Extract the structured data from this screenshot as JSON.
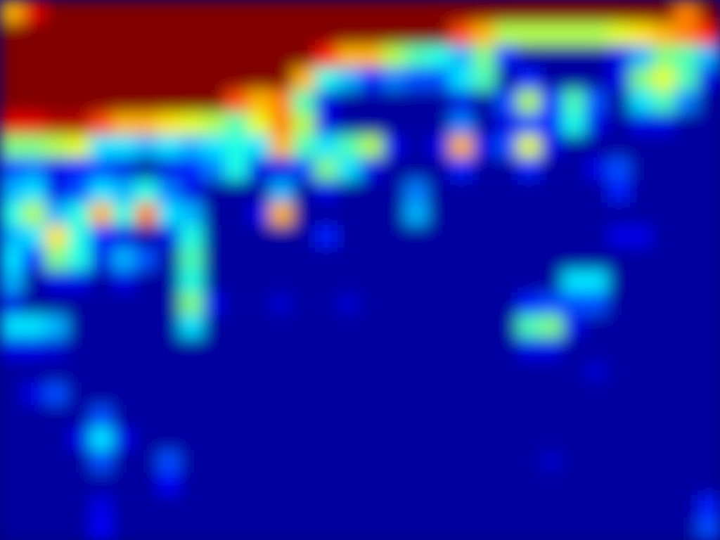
{
  "chart_data": {
    "type": "heatmap",
    "tick_labels": false,
    "zlim": [
      0,
      1
    ],
    "cells": [
      [
        0.7,
        0.9,
        1,
        1,
        1,
        1,
        1,
        1,
        1,
        1,
        1,
        1,
        1,
        1,
        1,
        1,
        1,
        1,
        1,
        1,
        1,
        1,
        1,
        1,
        1,
        1,
        1,
        1,
        1,
        1,
        0.75,
        1
      ],
      [
        1,
        1,
        1,
        1,
        1,
        1,
        1,
        1,
        1,
        1,
        1,
        1,
        1,
        1,
        1,
        1,
        1,
        1,
        1,
        1,
        0.8,
        0.7,
        0.55,
        0.55,
        0.55,
        0.55,
        0.55,
        0.6,
        0.65,
        0.7,
        0.75,
        0.85
      ],
      [
        1,
        1,
        1,
        1,
        1,
        1,
        1,
        1,
        1,
        1,
        1,
        1,
        1,
        1,
        0.85,
        0.7,
        0.7,
        0.55,
        0.45,
        0.4,
        0.3,
        0.5,
        0.15,
        0.03,
        0.03,
        0.03,
        0.03,
        0.1,
        0.3,
        0.5,
        0.45,
        0.3
      ],
      [
        1,
        1,
        1,
        1,
        1,
        1,
        1,
        1,
        1,
        1,
        1,
        1,
        1,
        0.7,
        0.4,
        0.3,
        0.15,
        0.25,
        0.2,
        0.2,
        0.35,
        0.45,
        0.03,
        0.15,
        0.03,
        0.03,
        0.03,
        0.1,
        0.5,
        0.6,
        0.45,
        0.1
      ],
      [
        1,
        1,
        1,
        1,
        1,
        1,
        1,
        1,
        1,
        1,
        0.8,
        0.7,
        0.75,
        0.45,
        0.1,
        0.03,
        0.03,
        0.03,
        0.03,
        0.03,
        0.1,
        0.03,
        0.2,
        0.55,
        0.15,
        0.45,
        0.2,
        0.03,
        0.35,
        0.45,
        0.25,
        0.03
      ],
      [
        0.9,
        0.9,
        0.95,
        0.95,
        0.8,
        0.7,
        0.7,
        0.65,
        0.6,
        0.55,
        0.45,
        0.6,
        0.75,
        0.55,
        0.1,
        0.03,
        0.03,
        0.03,
        0.03,
        0.03,
        0.25,
        0.03,
        0.1,
        0.2,
        0.15,
        0.4,
        0.1,
        0.03,
        0.1,
        0.1,
        0.03,
        0.03
      ],
      [
        0.5,
        0.5,
        0.55,
        0.6,
        0.35,
        0.35,
        0.3,
        0.35,
        0.3,
        0.35,
        0.4,
        0.35,
        0.7,
        0.45,
        0.35,
        0.45,
        0.55,
        0.1,
        0.03,
        0.1,
        0.7,
        0.1,
        0.2,
        0.6,
        0.1,
        0.03,
        0.03,
        0.03,
        0.03,
        0.03,
        0.03,
        0.03
      ],
      [
        0.2,
        0.25,
        0.1,
        0.15,
        0.2,
        0.1,
        0.03,
        0.1,
        0.15,
        0.25,
        0.4,
        0.1,
        0.1,
        0.2,
        0.5,
        0.35,
        0.1,
        0.03,
        0.03,
        0.03,
        0.15,
        0.03,
        0.03,
        0.15,
        0.03,
        0.03,
        0.1,
        0.2,
        0.03,
        0.03,
        0.03,
        0.03
      ],
      [
        0.3,
        0.35,
        0.1,
        0.2,
        0.35,
        0.3,
        0.4,
        0.25,
        0.1,
        0.03,
        0.03,
        0.03,
        0.3,
        0.03,
        0.1,
        0.03,
        0.03,
        0.03,
        0.25,
        0.03,
        0.03,
        0.03,
        0.03,
        0.03,
        0.03,
        0.03,
        0.03,
        0.15,
        0.03,
        0.03,
        0.03,
        0.03
      ],
      [
        0.4,
        0.55,
        0.3,
        0.4,
        0.7,
        0.4,
        0.75,
        0.35,
        0.3,
        0.03,
        0.03,
        0.1,
        0.7,
        0.03,
        0.03,
        0.03,
        0.03,
        0.03,
        0.3,
        0.03,
        0.03,
        0.03,
        0.03,
        0.03,
        0.03,
        0.03,
        0.03,
        0.03,
        0.03,
        0.03,
        0.03,
        0.03
      ],
      [
        0.3,
        0.35,
        0.65,
        0.4,
        0.15,
        0.1,
        0.03,
        0.1,
        0.4,
        0.03,
        0.03,
        0.03,
        0.03,
        0.03,
        0.15,
        0.03,
        0.03,
        0.03,
        0.03,
        0.03,
        0.03,
        0.03,
        0.03,
        0.03,
        0.03,
        0.03,
        0.03,
        0.1,
        0.1,
        0.03,
        0.03,
        0.03
      ],
      [
        0.35,
        0.15,
        0.5,
        0.4,
        0.1,
        0.3,
        0.2,
        0.03,
        0.45,
        0.03,
        0.03,
        0.03,
        0.03,
        0.03,
        0.03,
        0.03,
        0.03,
        0.03,
        0.03,
        0.03,
        0.03,
        0.03,
        0.03,
        0.03,
        0.03,
        0.03,
        0.03,
        0.03,
        0.03,
        0.03,
        0.03,
        0.03
      ],
      [
        0.3,
        0.03,
        0.1,
        0.1,
        0.03,
        0.1,
        0.03,
        0.03,
        0.4,
        0.03,
        0.03,
        0.03,
        0.03,
        0.03,
        0.03,
        0.03,
        0.03,
        0.03,
        0.03,
        0.03,
        0.03,
        0.03,
        0.03,
        0.03,
        0.03,
        0.35,
        0.35,
        0.03,
        0.03,
        0.03,
        0.03,
        0.03
      ],
      [
        0.1,
        0.03,
        0.03,
        0.03,
        0.03,
        0.03,
        0.03,
        0.03,
        0.5,
        0.1,
        0.03,
        0.03,
        0.08,
        0.03,
        0.03,
        0.08,
        0.03,
        0.03,
        0.03,
        0.03,
        0.03,
        0.03,
        0.03,
        0.15,
        0.2,
        0.2,
        0.2,
        0.03,
        0.03,
        0.03,
        0.03,
        0.03
      ],
      [
        0.35,
        0.35,
        0.3,
        0.03,
        0.03,
        0.03,
        0.03,
        0.03,
        0.35,
        0.03,
        0.03,
        0.03,
        0.03,
        0.03,
        0.03,
        0.03,
        0.03,
        0.03,
        0.03,
        0.03,
        0.03,
        0.03,
        0.03,
        0.45,
        0.5,
        0.1,
        0.03,
        0.03,
        0.03,
        0.03,
        0.03,
        0.03
      ],
      [
        0.1,
        0.1,
        0.08,
        0.03,
        0.03,
        0.03,
        0.03,
        0.03,
        0.03,
        0.03,
        0.03,
        0.03,
        0.03,
        0.03,
        0.03,
        0.03,
        0.03,
        0.03,
        0.03,
        0.03,
        0.03,
        0.03,
        0.03,
        0.1,
        0.1,
        0.03,
        0.03,
        0.03,
        0.03,
        0.03,
        0.03,
        0.03
      ],
      [
        0.03,
        0.03,
        0.03,
        0.03,
        0.03,
        0.03,
        0.03,
        0.03,
        0.03,
        0.03,
        0.03,
        0.03,
        0.03,
        0.03,
        0.03,
        0.03,
        0.03,
        0.03,
        0.03,
        0.03,
        0.03,
        0.03,
        0.03,
        0.03,
        0.03,
        0.03,
        0.08,
        0.03,
        0.03,
        0.03,
        0.03,
        0.03
      ],
      [
        0.03,
        0.1,
        0.2,
        0.03,
        0.03,
        0.03,
        0.03,
        0.03,
        0.03,
        0.03,
        0.03,
        0.03,
        0.03,
        0.03,
        0.03,
        0.03,
        0.03,
        0.03,
        0.03,
        0.03,
        0.03,
        0.03,
        0.03,
        0.03,
        0.03,
        0.03,
        0.03,
        0.03,
        0.03,
        0.03,
        0.03,
        0.03
      ],
      [
        0.03,
        0.03,
        0.03,
        0.03,
        0.2,
        0.03,
        0.03,
        0.03,
        0.03,
        0.03,
        0.03,
        0.03,
        0.03,
        0.03,
        0.03,
        0.03,
        0.03,
        0.03,
        0.03,
        0.03,
        0.03,
        0.03,
        0.03,
        0.03,
        0.03,
        0.03,
        0.03,
        0.03,
        0.03,
        0.03,
        0.03,
        0.03
      ],
      [
        0.03,
        0.03,
        0.03,
        0.1,
        0.35,
        0.1,
        0.03,
        0.03,
        0.03,
        0.03,
        0.03,
        0.03,
        0.03,
        0.03,
        0.03,
        0.03,
        0.03,
        0.03,
        0.03,
        0.03,
        0.03,
        0.03,
        0.03,
        0.03,
        0.03,
        0.03,
        0.03,
        0.03,
        0.03,
        0.03,
        0.03,
        0.03
      ],
      [
        0.03,
        0.03,
        0.03,
        0.03,
        0.2,
        0.03,
        0.03,
        0.2,
        0.03,
        0.03,
        0.03,
        0.03,
        0.03,
        0.03,
        0.03,
        0.03,
        0.03,
        0.03,
        0.03,
        0.03,
        0.03,
        0.03,
        0.03,
        0.03,
        0.07,
        0.03,
        0.03,
        0.03,
        0.03,
        0.03,
        0.03,
        0.03
      ],
      [
        0.03,
        0.03,
        0.03,
        0.03,
        0.03,
        0.03,
        0.03,
        0.12,
        0.03,
        0.03,
        0.03,
        0.03,
        0.03,
        0.03,
        0.03,
        0.03,
        0.03,
        0.03,
        0.03,
        0.03,
        0.03,
        0.03,
        0.03,
        0.03,
        0.03,
        0.03,
        0.03,
        0.03,
        0.03,
        0.03,
        0.03,
        0.03
      ],
      [
        0.03,
        0.03,
        0.03,
        0.03,
        0.1,
        0.03,
        0.03,
        0.03,
        0.03,
        0.03,
        0.03,
        0.03,
        0.03,
        0.03,
        0.03,
        0.03,
        0.03,
        0.03,
        0.03,
        0.03,
        0.03,
        0.03,
        0.03,
        0.03,
        0.03,
        0.03,
        0.03,
        0.03,
        0.03,
        0.03,
        0.03,
        0.15
      ],
      [
        0.03,
        0.03,
        0.03,
        0.03,
        0.12,
        0.03,
        0.03,
        0.03,
        0.03,
        0.03,
        0.03,
        0.03,
        0.03,
        0.03,
        0.03,
        0.03,
        0.03,
        0.03,
        0.03,
        0.03,
        0.03,
        0.03,
        0.03,
        0.03,
        0.03,
        0.03,
        0.03,
        0.03,
        0.03,
        0.03,
        0.03,
        0.2
      ]
    ]
  }
}
